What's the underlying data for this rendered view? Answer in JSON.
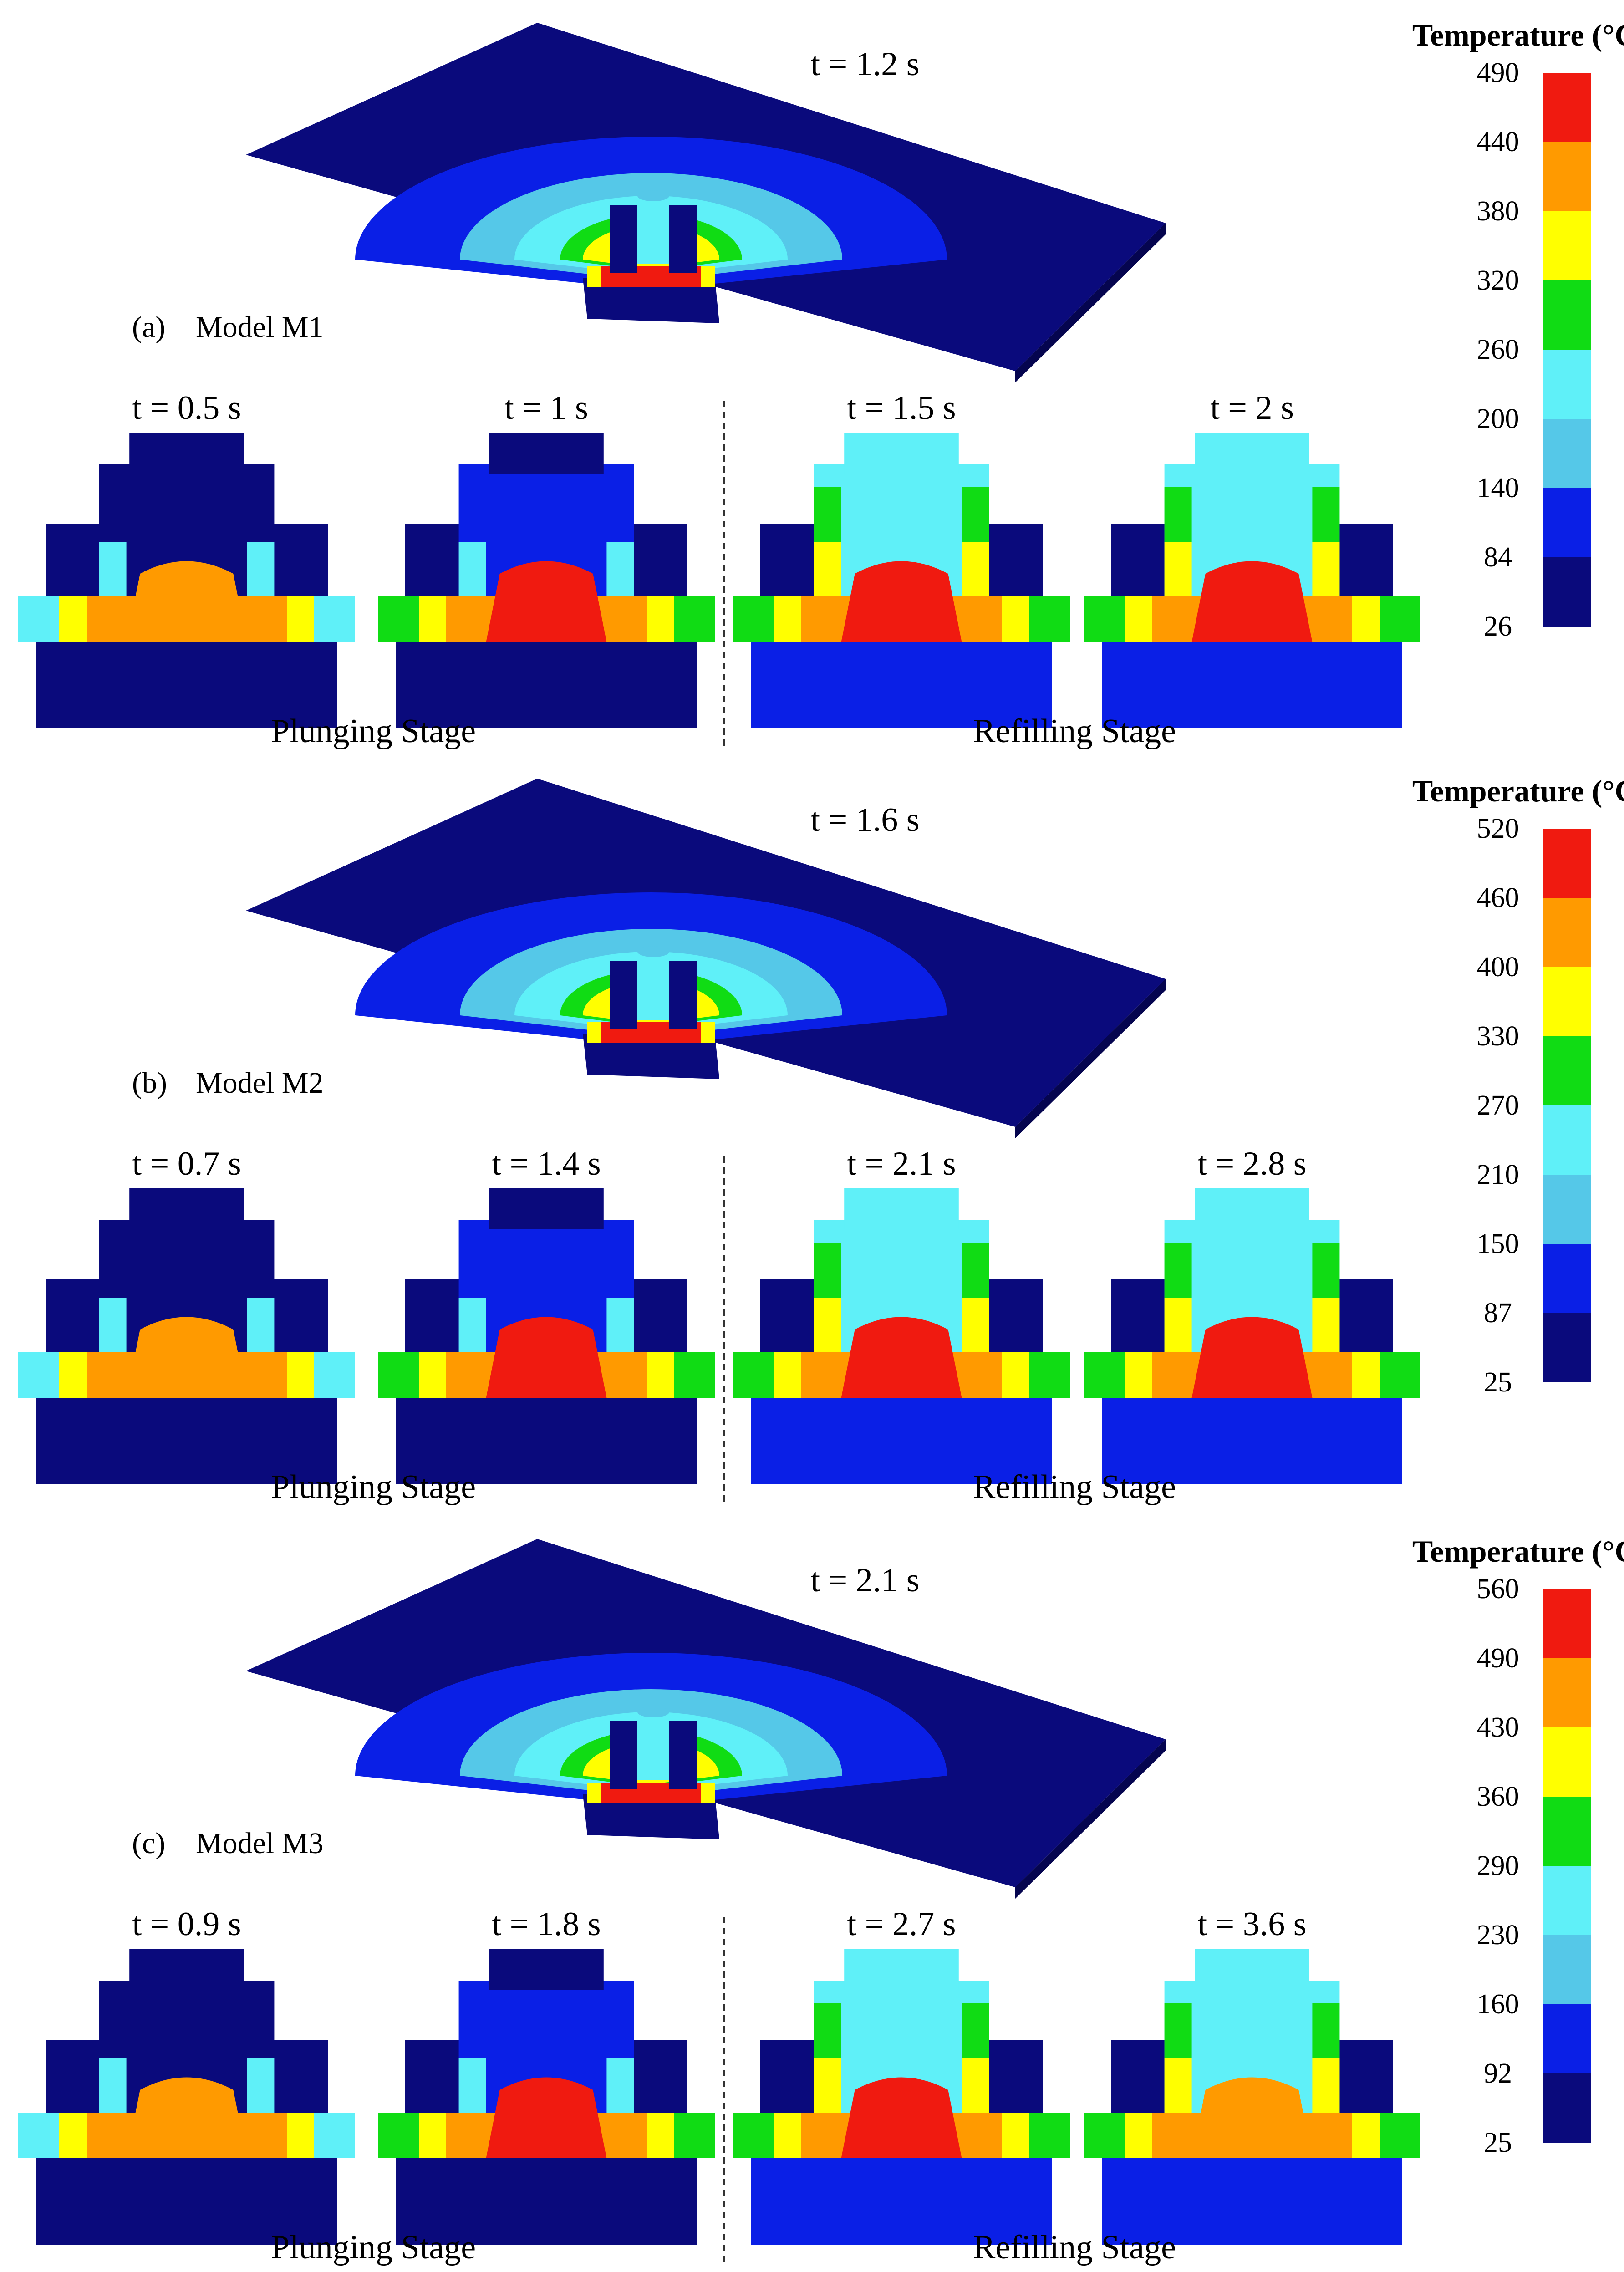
{
  "palette": [
    "#0a0a7c",
    "#0a1fe6",
    "#55c8e8",
    "#5ff0f8",
    "#10dc14",
    "#ffff00",
    "#ff9a00",
    "#f01a10"
  ],
  "panels": [
    {
      "label": "(a)",
      "model": "Model M1",
      "main_time": "t = 1.2 s",
      "times": [
        "t = 0.5 s",
        "t = 1 s",
        "t = 1.5 s",
        "t = 2 s"
      ],
      "plunging": "Plunging Stage",
      "refilling": "Refilling Stage",
      "colorbar": {
        "title": "Temperature (°C)",
        "ticks": [
          "490",
          "440",
          "380",
          "320",
          "260",
          "200",
          "140",
          "84",
          "26"
        ]
      }
    },
    {
      "label": "(b)",
      "model": "Model M2",
      "main_time": "t = 1.6 s",
      "times": [
        "t = 0.7 s",
        "t = 1.4 s",
        "t = 2.1 s",
        "t = 2.8 s"
      ],
      "plunging": "Plunging Stage",
      "refilling": "Refilling Stage",
      "colorbar": {
        "title": "Temperature (°C)",
        "ticks": [
          "520",
          "460",
          "400",
          "330",
          "270",
          "210",
          "150",
          "87",
          "25"
        ]
      }
    },
    {
      "label": "(c)",
      "model": "Model M3",
      "main_time": "t = 2.1 s",
      "times": [
        "t = 0.9 s",
        "t = 1.8 s",
        "t =  2.7 s",
        "t =  3.6 s"
      ],
      "plunging": "Plunging Stage",
      "refilling": "Refilling Stage",
      "colorbar": {
        "title": "Temperature (°C)",
        "ticks": [
          "560",
          "490",
          "430",
          "360",
          "290",
          "230",
          "160",
          "92",
          "25"
        ]
      }
    }
  ]
}
